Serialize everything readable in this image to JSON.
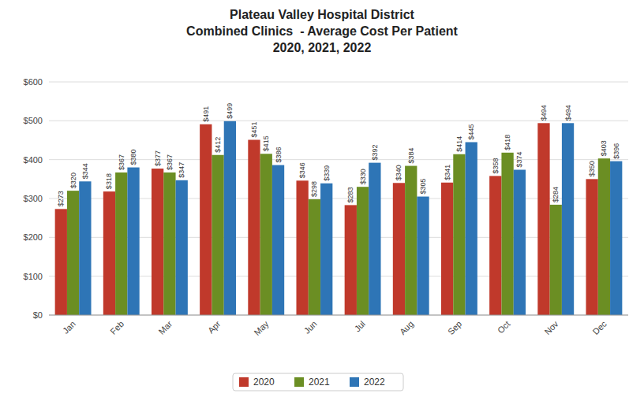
{
  "chart_data": {
    "type": "bar",
    "title": "Plateau Valley Hospital District\nCombined Clinics  - Average Cost Per Patient\n2020, 2021, 2022",
    "categories": [
      "Jan",
      "Feb",
      "Mar",
      "Apr",
      "May",
      "Jun",
      "Jul",
      "Aug",
      "Sep",
      "Oct",
      "Nov",
      "Dec"
    ],
    "series": [
      {
        "name": "2020",
        "color": "#C0392B",
        "values": [
          273,
          318,
          377,
          491,
          451,
          346,
          283,
          340,
          341,
          358,
          494,
          350
        ],
        "value_labels": [
          "$273",
          "$318",
          "$377",
          "$491",
          "$451",
          "$346",
          "$283",
          "$340",
          "$341",
          "$358",
          "$494",
          "$350"
        ]
      },
      {
        "name": "2021",
        "color": "#6B8E23",
        "values": [
          320,
          367,
          367,
          412,
          415,
          298,
          330,
          384,
          414,
          418,
          284,
          403
        ],
        "value_labels": [
          "$320",
          "$367",
          "$367",
          "$412",
          "$415",
          "$298",
          "$330",
          "$384",
          "$414",
          "$418",
          "$284",
          "$403"
        ]
      },
      {
        "name": "2022",
        "color": "#2E75B6",
        "values": [
          344,
          380,
          347,
          499,
          386,
          339,
          392,
          305,
          445,
          374,
          494,
          396
        ],
        "value_labels": [
          "$344",
          "$380",
          "$347",
          "$499",
          "$386",
          "$339",
          "$392",
          "$305",
          "$445",
          "$374",
          "$494",
          "$396"
        ]
      }
    ],
    "ylim": [
      0,
      600
    ],
    "yticks": [
      {
        "value": 0,
        "label": "$0"
      },
      {
        "value": 100,
        "label": "$100"
      },
      {
        "value": 200,
        "label": "$200"
      },
      {
        "value": 300,
        "label": "$300"
      },
      {
        "value": 400,
        "label": "$400"
      },
      {
        "value": 500,
        "label": "$500"
      },
      {
        "value": 600,
        "label": "$600"
      }
    ],
    "grid": true,
    "data_labels": true,
    "legend": "bottom"
  }
}
